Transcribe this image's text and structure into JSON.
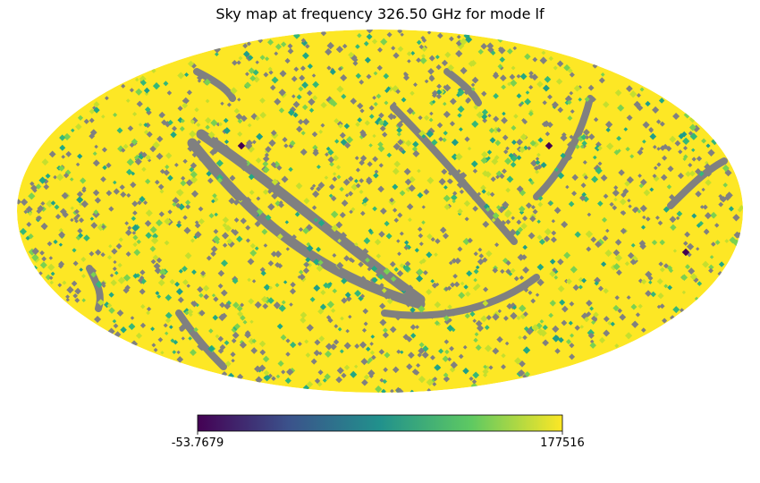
{
  "chart_data": {
    "type": "heatmap",
    "subtype": "mollweide-sky-map",
    "title": "Sky map at frequency 326.50 GHz for mode lf",
    "projection": "mollweide",
    "colormap": "viridis",
    "colormap_stops": [
      "#440154",
      "#3b528b",
      "#21918c",
      "#5ec962",
      "#fde725"
    ],
    "bad_value_color": "#808080",
    "background_color": "#ffffff",
    "colorbar": {
      "min_label": "-53.7679",
      "max_label": "177516",
      "min": -53.7679,
      "max": 177516,
      "orientation": "horizontal"
    },
    "dominant_value": "near max (yellow)",
    "notes": "Most pixels saturate near the top of the colour scale; scattered green/teal pixels; masked (grey) pixels along scan stripes."
  }
}
